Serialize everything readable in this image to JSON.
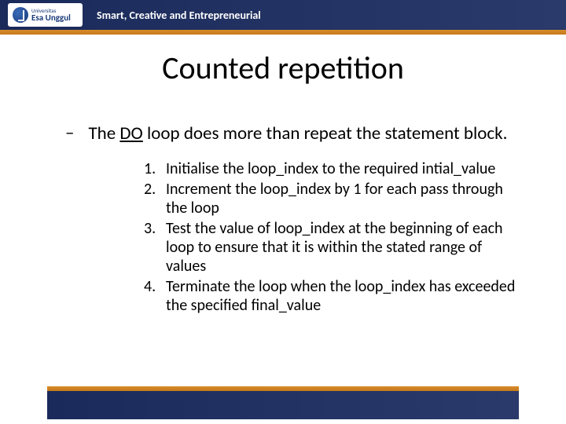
{
  "header": {
    "logo_top": "Universitas",
    "logo_bottom": "Esa Unggul",
    "tagline": "Smart, Creative and Entrepreneurial"
  },
  "title": "Counted repetition",
  "main_bullet": {
    "dash": "–",
    "text_before": "The ",
    "text_underlined": "DO",
    "text_after": " loop does more than repeat the statement block."
  },
  "steps": [
    "Initialise the loop_index to the required intial_value",
    "Increment the loop_index by 1 for each pass through the loop",
    "Test the value of loop_index at the beginning of each loop to ensure that it is within the stated range of values",
    "Terminate the loop when the loop_index has exceeded the specified final_value"
  ],
  "colors": {
    "header_bg": "#1a2a5a",
    "orange": "#d88a2b",
    "text": "#000000",
    "bg": "#ffffff"
  }
}
